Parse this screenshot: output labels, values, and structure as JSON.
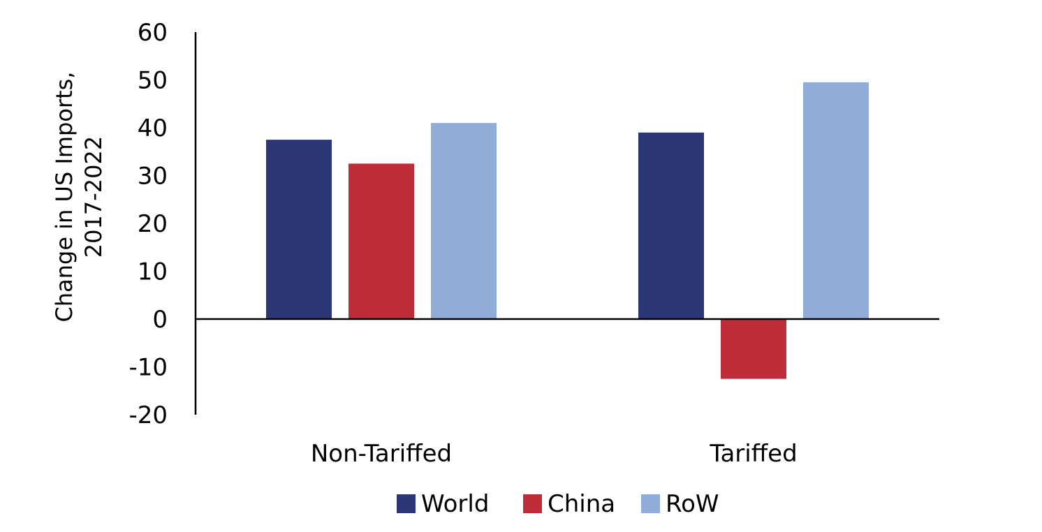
{
  "chart_data": {
    "type": "bar",
    "categories": [
      "Non-Tariffed",
      "Tariffed"
    ],
    "series": [
      {
        "name": "World",
        "values": [
          37.5,
          39
        ],
        "color": "#2b3676"
      },
      {
        "name": "China",
        "values": [
          32.5,
          -12.5
        ],
        "color": "#bd2c37"
      },
      {
        "name": "RoW",
        "values": [
          41,
          49.5
        ],
        "color": "#8fadd8"
      }
    ],
    "ylabel_lines": [
      "Change in US Imports,",
      "2017-2022"
    ],
    "xlabel": "",
    "ylim": [
      -20,
      60
    ],
    "yticks": [
      60,
      50,
      40,
      30,
      20,
      10,
      0,
      -10,
      -20
    ],
    "grid": false,
    "legend_position": "bottom"
  }
}
